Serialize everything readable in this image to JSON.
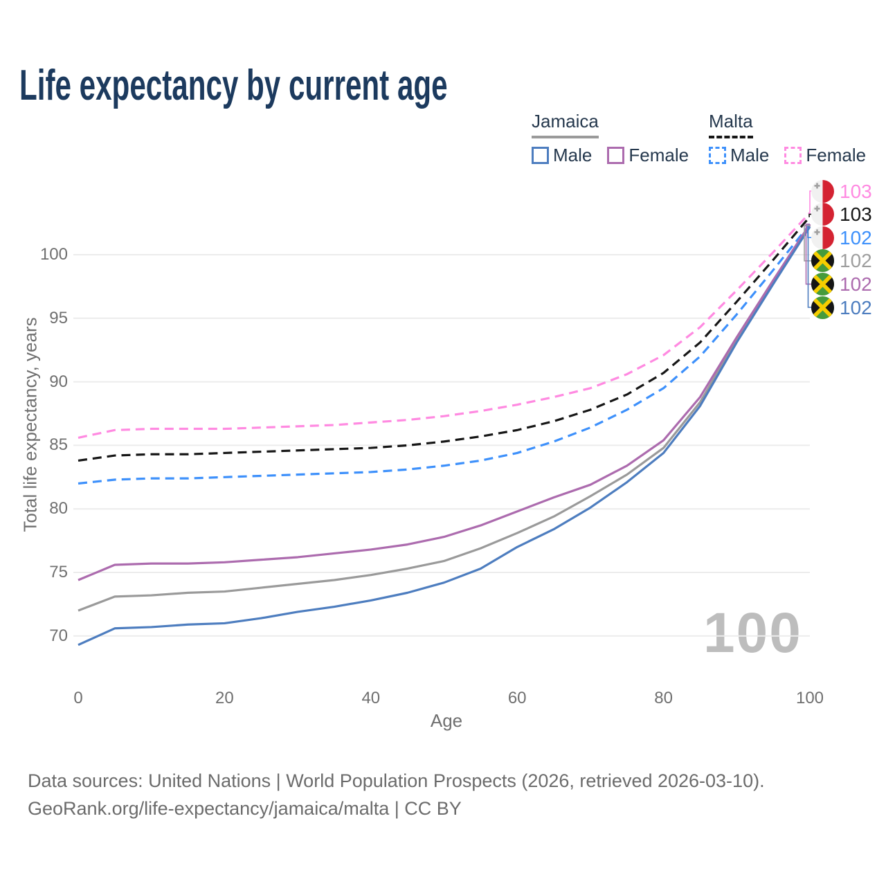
{
  "title": "Life expectancy by current age",
  "legend": {
    "groups": [
      {
        "name": "jamaica",
        "label": "Jamaica",
        "underline_style": "solid",
        "underline_color": "#9a9a9a",
        "items": [
          {
            "name": "jamaica-male",
            "label": "Male",
            "color": "#4d7dbf",
            "dashed": false
          },
          {
            "name": "jamaica-female",
            "label": "Female",
            "color": "#ac6bae",
            "dashed": false
          }
        ]
      },
      {
        "name": "malta",
        "label": "Malta",
        "underline_style": "dashed",
        "underline_color": "#161616",
        "items": [
          {
            "name": "malta-male",
            "label": "Male",
            "color": "#3d90fb",
            "dashed": true
          },
          {
            "name": "malta-female",
            "label": "Female",
            "color": "#ff8ae1",
            "dashed": true
          }
        ]
      }
    ]
  },
  "y_axis": {
    "title": "Total life expectancy, years",
    "ticks": [
      70,
      75,
      80,
      85,
      90,
      95,
      100
    ]
  },
  "x_axis": {
    "title": "Age",
    "ticks": [
      0,
      20,
      40,
      60,
      80,
      100
    ]
  },
  "watermark": "100",
  "right_labels": [
    {
      "name": "malta-female",
      "value": "103",
      "color": "#ff8ae1",
      "flag": "malta"
    },
    {
      "name": "malta-total",
      "value": "103",
      "color": "#161616",
      "flag": "malta"
    },
    {
      "name": "malta-male",
      "value": "102",
      "color": "#3d90fb",
      "flag": "malta"
    },
    {
      "name": "jamaica-total",
      "value": "102",
      "color": "#9e9e9e",
      "flag": "jamaica"
    },
    {
      "name": "jamaica-female",
      "value": "102",
      "color": "#ac6bae",
      "flag": "jamaica"
    },
    {
      "name": "jamaica-male",
      "value": "102",
      "color": "#4d7dbf",
      "flag": "jamaica"
    }
  ],
  "footer": {
    "line1": "Data sources: United Nations | World Population Prospects (2026, retrieved 2026-03-10).",
    "line2": "GeoRank.org/life-expectancy/jamaica/malta | CC BY"
  },
  "chart_data": {
    "type": "line",
    "title": "Life expectancy by current age",
    "xlabel": "Age",
    "ylabel": "Total life expectancy, years",
    "xlim": [
      0,
      100
    ],
    "ylim": [
      68,
      104
    ],
    "grid": true,
    "legend_position": "top-right",
    "x": [
      0,
      5,
      10,
      15,
      20,
      25,
      30,
      35,
      40,
      45,
      50,
      55,
      60,
      65,
      70,
      75,
      80,
      85,
      90,
      95,
      100
    ],
    "series": [
      {
        "name": "Malta Female",
        "country": "Malta",
        "sex": "female",
        "color": "#ff8ae1",
        "dashed": true,
        "values": [
          85.6,
          86.2,
          86.3,
          86.3,
          86.3,
          86.4,
          86.5,
          86.6,
          86.8,
          87.0,
          87.3,
          87.7,
          88.2,
          88.8,
          89.5,
          90.6,
          92.1,
          94.3,
          97.2,
          100.2,
          103.3
        ]
      },
      {
        "name": "Malta",
        "country": "Malta",
        "sex": "total",
        "color": "#161616",
        "dashed": true,
        "values": [
          83.8,
          84.2,
          84.3,
          84.3,
          84.4,
          84.5,
          84.6,
          84.7,
          84.8,
          85.0,
          85.3,
          85.7,
          86.2,
          86.9,
          87.8,
          89.0,
          90.7,
          93.1,
          96.3,
          99.6,
          103.0
        ]
      },
      {
        "name": "Malta Male",
        "country": "Malta",
        "sex": "male",
        "color": "#3d90fb",
        "dashed": true,
        "values": [
          82.0,
          82.3,
          82.4,
          82.4,
          82.5,
          82.6,
          82.7,
          82.8,
          82.9,
          83.1,
          83.4,
          83.8,
          84.4,
          85.3,
          86.4,
          87.8,
          89.5,
          92.0,
          95.3,
          98.8,
          102.4
        ]
      },
      {
        "name": "Jamaica",
        "country": "Jamaica",
        "sex": "total",
        "color": "#9a9a9a",
        "dashed": false,
        "values": [
          72.0,
          73.1,
          73.2,
          73.4,
          73.5,
          73.8,
          74.1,
          74.4,
          74.8,
          75.3,
          75.9,
          76.9,
          78.1,
          79.4,
          81.0,
          82.7,
          84.8,
          88.4,
          93.3,
          97.8,
          102.3
        ]
      },
      {
        "name": "Jamaica Female",
        "country": "Jamaica",
        "sex": "female",
        "color": "#ac6bae",
        "dashed": false,
        "values": [
          74.4,
          75.6,
          75.7,
          75.7,
          75.8,
          76.0,
          76.2,
          76.5,
          76.8,
          77.2,
          77.8,
          78.7,
          79.8,
          80.9,
          81.9,
          83.4,
          85.4,
          88.8,
          93.5,
          98.0,
          102.4
        ]
      },
      {
        "name": "Jamaica Male",
        "country": "Jamaica",
        "sex": "male",
        "color": "#4d7dbf",
        "dashed": false,
        "values": [
          69.3,
          70.6,
          70.7,
          70.9,
          71.0,
          71.4,
          71.9,
          72.3,
          72.8,
          73.4,
          74.2,
          75.3,
          77.0,
          78.4,
          80.1,
          82.1,
          84.4,
          88.1,
          93.1,
          97.7,
          102.2
        ]
      }
    ],
    "end_labels": [
      103,
      103,
      102,
      102,
      102,
      102
    ]
  }
}
